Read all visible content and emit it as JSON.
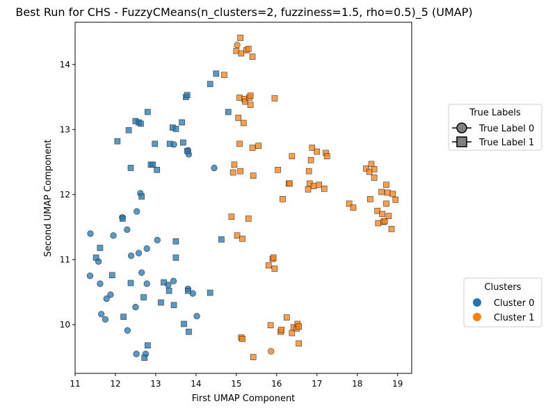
{
  "chart_data": {
    "type": "scatter",
    "title": "Best Run for CHS - FuzzyCMeans(n_clusters=2, fuzziness=1.5, rho=0.5)_5 (UMAP)",
    "xlabel": "First UMAP Component",
    "ylabel": "Second UMAP Component",
    "xlim": [
      11.0,
      19.35
    ],
    "ylim": [
      9.25,
      14.65
    ],
    "xticks": [
      11,
      12,
      13,
      14,
      15,
      16,
      17,
      18,
      19
    ],
    "yticks": [
      10,
      11,
      12,
      13,
      14
    ],
    "grid": false,
    "colors": {
      "cluster_0": "#1f77b4",
      "cluster_1": "#ff7f0e",
      "legend_marker": "#808080"
    },
    "legends": [
      {
        "title": "True Labels",
        "placement": "right-upper",
        "entries": [
          {
            "label": "True Label 0",
            "marker": "circle"
          },
          {
            "label": "True Label 1",
            "marker": "square"
          }
        ]
      },
      {
        "title": "Clusters",
        "placement": "right-lower",
        "entries": [
          {
            "label": "Cluster 0",
            "color": "#1f77b4"
          },
          {
            "label": "Cluster 1",
            "color": "#ff7f0e"
          }
        ]
      }
    ],
    "points": [
      [
        11.38,
        11.4,
        0,
        0
      ],
      [
        11.58,
        10.97,
        0,
        0
      ],
      [
        11.37,
        10.75,
        0,
        0
      ],
      [
        11.62,
        10.63,
        0,
        0
      ],
      [
        11.95,
        11.37,
        0,
        0
      ],
      [
        11.88,
        10.46,
        0,
        0
      ],
      [
        11.78,
        10.4,
        0,
        0
      ],
      [
        11.65,
        10.16,
        0,
        0
      ],
      [
        11.75,
        10.08,
        0,
        0
      ],
      [
        12.17,
        11.65,
        0,
        0
      ],
      [
        12.29,
        11.46,
        0,
        0
      ],
      [
        12.39,
        11.06,
        0,
        0
      ],
      [
        12.58,
        11.1,
        0,
        0
      ],
      [
        12.53,
        11.74,
        0,
        0
      ],
      [
        12.62,
        12.02,
        0,
        0
      ],
      [
        12.65,
        10.8,
        0,
        0
      ],
      [
        12.78,
        11.17,
        0,
        0
      ],
      [
        13.04,
        11.3,
        0,
        0
      ],
      [
        12.3,
        9.91,
        0,
        0
      ],
      [
        12.5,
        10.27,
        0,
        0
      ],
      [
        12.52,
        9.55,
        0,
        0
      ],
      [
        12.75,
        9.55,
        0,
        0
      ],
      [
        12.78,
        10.63,
        0,
        0
      ],
      [
        13.31,
        10.61,
        0,
        0
      ],
      [
        13.44,
        10.67,
        0,
        0
      ],
      [
        13.8,
        10.55,
        0,
        0
      ],
      [
        13.92,
        10.48,
        0,
        0
      ],
      [
        14.02,
        10.13,
        0,
        0
      ],
      [
        13.45,
        12.77,
        0,
        0
      ],
      [
        13.8,
        12.68,
        0,
        0
      ],
      [
        13.82,
        12.62,
        0,
        0
      ],
      [
        14.45,
        12.41,
        0,
        0
      ],
      [
        15.02,
        14.3,
        0,
        1
      ],
      [
        15.86,
        9.59,
        0,
        1
      ],
      [
        11.52,
        11.03,
        1,
        0
      ],
      [
        11.62,
        11.18,
        1,
        0
      ],
      [
        11.92,
        10.76,
        1,
        0
      ],
      [
        12.05,
        12.82,
        1,
        0
      ],
      [
        12.18,
        11.63,
        1,
        0
      ],
      [
        12.2,
        10.12,
        1,
        0
      ],
      [
        12.33,
        12.99,
        1,
        0
      ],
      [
        12.38,
        12.41,
        1,
        0
      ],
      [
        12.38,
        10.64,
        1,
        0
      ],
      [
        12.5,
        13.13,
        1,
        0
      ],
      [
        12.58,
        13.11,
        1,
        0
      ],
      [
        12.63,
        13.09,
        1,
        0
      ],
      [
        12.65,
        11.97,
        1,
        0
      ],
      [
        12.7,
        10.42,
        1,
        0
      ],
      [
        12.72,
        9.49,
        1,
        0
      ],
      [
        12.8,
        13.27,
        1,
        0
      ],
      [
        12.8,
        9.68,
        1,
        0
      ],
      [
        12.88,
        12.46,
        1,
        0
      ],
      [
        12.93,
        12.46,
        1,
        0
      ],
      [
        12.98,
        12.78,
        1,
        0
      ],
      [
        13.03,
        12.38,
        1,
        0
      ],
      [
        13.13,
        10.34,
        1,
        0
      ],
      [
        13.2,
        10.65,
        1,
        0
      ],
      [
        13.33,
        10.52,
        1,
        0
      ],
      [
        13.35,
        12.78,
        1,
        0
      ],
      [
        13.42,
        13.03,
        1,
        0
      ],
      [
        13.45,
        10.3,
        1,
        0
      ],
      [
        13.5,
        11.03,
        1,
        0
      ],
      [
        13.5,
        13.01,
        1,
        0
      ],
      [
        13.5,
        11.28,
        1,
        0
      ],
      [
        13.65,
        13.11,
        1,
        0
      ],
      [
        13.68,
        12.8,
        1,
        0
      ],
      [
        13.7,
        10.01,
        1,
        0
      ],
      [
        13.75,
        13.5,
        1,
        0
      ],
      [
        13.78,
        12.67,
        1,
        0
      ],
      [
        13.78,
        13.53,
        1,
        0
      ],
      [
        13.8,
        10.52,
        1,
        0
      ],
      [
        13.82,
        9.89,
        1,
        0
      ],
      [
        14.35,
        13.7,
        1,
        0
      ],
      [
        14.35,
        10.49,
        1,
        0
      ],
      [
        14.5,
        13.86,
        1,
        0
      ],
      [
        14.63,
        11.31,
        1,
        0
      ],
      [
        14.8,
        13.27,
        1,
        0
      ],
      [
        14.7,
        13.84,
        1,
        1
      ],
      [
        14.88,
        11.66,
        1,
        1
      ],
      [
        14.92,
        12.34,
        1,
        1
      ],
      [
        14.95,
        12.46,
        1,
        1
      ],
      [
        15.0,
        14.21,
        1,
        1
      ],
      [
        15.02,
        11.37,
        1,
        1
      ],
      [
        15.05,
        13.18,
        1,
        1
      ],
      [
        15.08,
        13.49,
        1,
        1
      ],
      [
        15.08,
        12.78,
        1,
        1
      ],
      [
        15.1,
        12.36,
        1,
        1
      ],
      [
        15.1,
        14.41,
        1,
        1
      ],
      [
        15.12,
        14.17,
        1,
        1
      ],
      [
        15.12,
        9.8,
        1,
        1
      ],
      [
        15.15,
        9.78,
        1,
        1
      ],
      [
        15.15,
        11.32,
        1,
        1
      ],
      [
        15.18,
        13.1,
        1,
        1
      ],
      [
        15.2,
        13.47,
        1,
        1
      ],
      [
        15.22,
        13.43,
        1,
        1
      ],
      [
        15.25,
        14.22,
        1,
        1
      ],
      [
        15.3,
        14.24,
        1,
        1
      ],
      [
        15.3,
        11.63,
        1,
        1
      ],
      [
        15.32,
        13.49,
        1,
        1
      ],
      [
        15.35,
        13.38,
        1,
        1
      ],
      [
        15.35,
        13.52,
        1,
        1
      ],
      [
        15.4,
        14.12,
        1,
        1
      ],
      [
        15.4,
        12.72,
        1,
        1
      ],
      [
        15.42,
        12.29,
        1,
        1
      ],
      [
        15.42,
        9.5,
        1,
        1
      ],
      [
        15.55,
        12.75,
        1,
        1
      ],
      [
        15.8,
        10.91,
        1,
        1
      ],
      [
        15.85,
        9.99,
        1,
        1
      ],
      [
        15.9,
        11.01,
        1,
        1
      ],
      [
        15.92,
        11.03,
        1,
        1
      ],
      [
        15.95,
        13.48,
        1,
        1
      ],
      [
        15.95,
        10.86,
        1,
        1
      ],
      [
        16.03,
        12.38,
        1,
        1
      ],
      [
        16.1,
        9.89,
        1,
        1
      ],
      [
        16.12,
        9.92,
        1,
        1
      ],
      [
        16.15,
        11.93,
        1,
        1
      ],
      [
        16.25,
        10.11,
        1,
        1
      ],
      [
        16.3,
        12.17,
        1,
        1
      ],
      [
        16.32,
        12.17,
        1,
        1
      ],
      [
        16.38,
        12.59,
        1,
        1
      ],
      [
        16.38,
        9.87,
        1,
        1
      ],
      [
        16.42,
        9.96,
        1,
        1
      ],
      [
        16.5,
        9.94,
        1,
        1
      ],
      [
        16.52,
        10.01,
        1,
        1
      ],
      [
        16.55,
        9.97,
        1,
        1
      ],
      [
        16.55,
        9.71,
        1,
        1
      ],
      [
        16.78,
        12.08,
        1,
        1
      ],
      [
        16.8,
        12.36,
        1,
        1
      ],
      [
        16.82,
        12.17,
        1,
        1
      ],
      [
        16.85,
        12.53,
        1,
        1
      ],
      [
        16.88,
        12.72,
        1,
        1
      ],
      [
        16.92,
        12.13,
        1,
        1
      ],
      [
        17.0,
        12.66,
        1,
        1
      ],
      [
        17.05,
        12.15,
        1,
        1
      ],
      [
        17.18,
        12.09,
        1,
        1
      ],
      [
        17.22,
        12.64,
        1,
        1
      ],
      [
        17.25,
        12.59,
        1,
        1
      ],
      [
        17.8,
        11.86,
        1,
        1
      ],
      [
        17.9,
        11.8,
        1,
        1
      ],
      [
        18.22,
        12.4,
        1,
        1
      ],
      [
        18.3,
        12.35,
        1,
        1
      ],
      [
        18.32,
        11.93,
        1,
        1
      ],
      [
        18.35,
        12.47,
        1,
        1
      ],
      [
        18.42,
        12.26,
        1,
        1
      ],
      [
        18.42,
        12.39,
        1,
        1
      ],
      [
        18.5,
        11.75,
        1,
        1
      ],
      [
        18.52,
        11.56,
        1,
        1
      ],
      [
        18.6,
        12.04,
        1,
        1
      ],
      [
        18.62,
        11.7,
        1,
        1
      ],
      [
        18.65,
        11.58,
        1,
        1
      ],
      [
        18.68,
        11.59,
        1,
        1
      ],
      [
        18.72,
        11.86,
        1,
        1
      ],
      [
        18.72,
        12.15,
        1,
        1
      ],
      [
        18.75,
        12.03,
        1,
        1
      ],
      [
        18.78,
        11.67,
        1,
        1
      ],
      [
        18.85,
        11.47,
        1,
        1
      ],
      [
        18.88,
        12.01,
        1,
        1
      ],
      [
        18.95,
        11.92,
        1,
        1
      ]
    ]
  }
}
